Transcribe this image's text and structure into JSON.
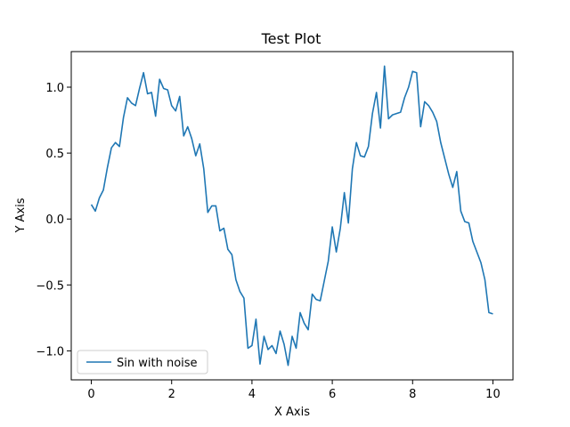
{
  "chart_data": {
    "type": "line",
    "title": "Test Plot",
    "xlabel": "X Axis",
    "ylabel": "Y Axis",
    "xlim": [
      -0.5,
      10.5
    ],
    "ylim": [
      -1.22,
      1.27
    ],
    "xticks": [
      0,
      2,
      4,
      6,
      8,
      10
    ],
    "xtick_labels": [
      "0",
      "2",
      "4",
      "6",
      "8",
      "10"
    ],
    "yticks": [
      -1.0,
      -0.5,
      0.0,
      0.5,
      1.0
    ],
    "ytick_labels": [
      "−1.0",
      "−0.5",
      "0.0",
      "0.5",
      "1.0"
    ],
    "grid": false,
    "legend_position": "lower-left",
    "colors": {
      "series": "#1f77b4",
      "axes": "#000000",
      "background": "#ffffff",
      "legend_border": "#cccccc"
    },
    "series": [
      {
        "name": "Sin with noise",
        "x": [
          0.0,
          0.1,
          0.2,
          0.3,
          0.4,
          0.5,
          0.6,
          0.7,
          0.8,
          0.9,
          1.0,
          1.1,
          1.2,
          1.3,
          1.4,
          1.5,
          1.6,
          1.7,
          1.8,
          1.9,
          2.0,
          2.1,
          2.2,
          2.3,
          2.4,
          2.5,
          2.6,
          2.7,
          2.8,
          2.9,
          3.0,
          3.1,
          3.2,
          3.3,
          3.4,
          3.5,
          3.6,
          3.7,
          3.8,
          3.9,
          4.0,
          4.1,
          4.2,
          4.3,
          4.4,
          4.5,
          4.6,
          4.7,
          4.8,
          4.9,
          5.0,
          5.1,
          5.2,
          5.3,
          5.4,
          5.5,
          5.6,
          5.7,
          5.8,
          5.9,
          6.0,
          6.1,
          6.2,
          6.3,
          6.4,
          6.5,
          6.6,
          6.7,
          6.8,
          6.9,
          7.0,
          7.1,
          7.2,
          7.3,
          7.4,
          7.5,
          7.6,
          7.7,
          7.8,
          7.9,
          8.0,
          8.1,
          8.2,
          8.3,
          8.4,
          8.5,
          8.6,
          8.7,
          8.8,
          8.9,
          9.0,
          9.1,
          9.2,
          9.3,
          9.4,
          9.5,
          9.6,
          9.7,
          9.8,
          9.9,
          10.0
        ],
        "y": [
          0.11,
          0.06,
          0.16,
          0.22,
          0.39,
          0.54,
          0.58,
          0.55,
          0.77,
          0.92,
          0.88,
          0.86,
          0.99,
          1.11,
          0.95,
          0.96,
          0.78,
          1.06,
          0.99,
          0.98,
          0.86,
          0.82,
          0.93,
          0.63,
          0.7,
          0.61,
          0.48,
          0.57,
          0.38,
          0.05,
          0.1,
          0.1,
          -0.09,
          -0.07,
          -0.23,
          -0.27,
          -0.46,
          -0.55,
          -0.6,
          -0.98,
          -0.96,
          -0.76,
          -1.1,
          -0.89,
          -0.99,
          -0.96,
          -1.02,
          -0.85,
          -0.95,
          -1.11,
          -0.89,
          -0.98,
          -0.71,
          -0.79,
          -0.84,
          -0.57,
          -0.61,
          -0.62,
          -0.47,
          -0.32,
          -0.06,
          -0.25,
          -0.07,
          0.2,
          -0.03,
          0.38,
          0.58,
          0.48,
          0.47,
          0.55,
          0.8,
          0.96,
          0.69,
          1.16,
          0.76,
          0.79,
          0.8,
          0.81,
          0.92,
          1.0,
          1.12,
          1.11,
          0.7,
          0.89,
          0.86,
          0.81,
          0.74,
          0.58,
          0.46,
          0.34,
          0.24,
          0.36,
          0.06,
          -0.02,
          -0.03,
          -0.17,
          -0.25,
          -0.33,
          -0.46,
          -0.71,
          -0.72
        ]
      }
    ]
  }
}
